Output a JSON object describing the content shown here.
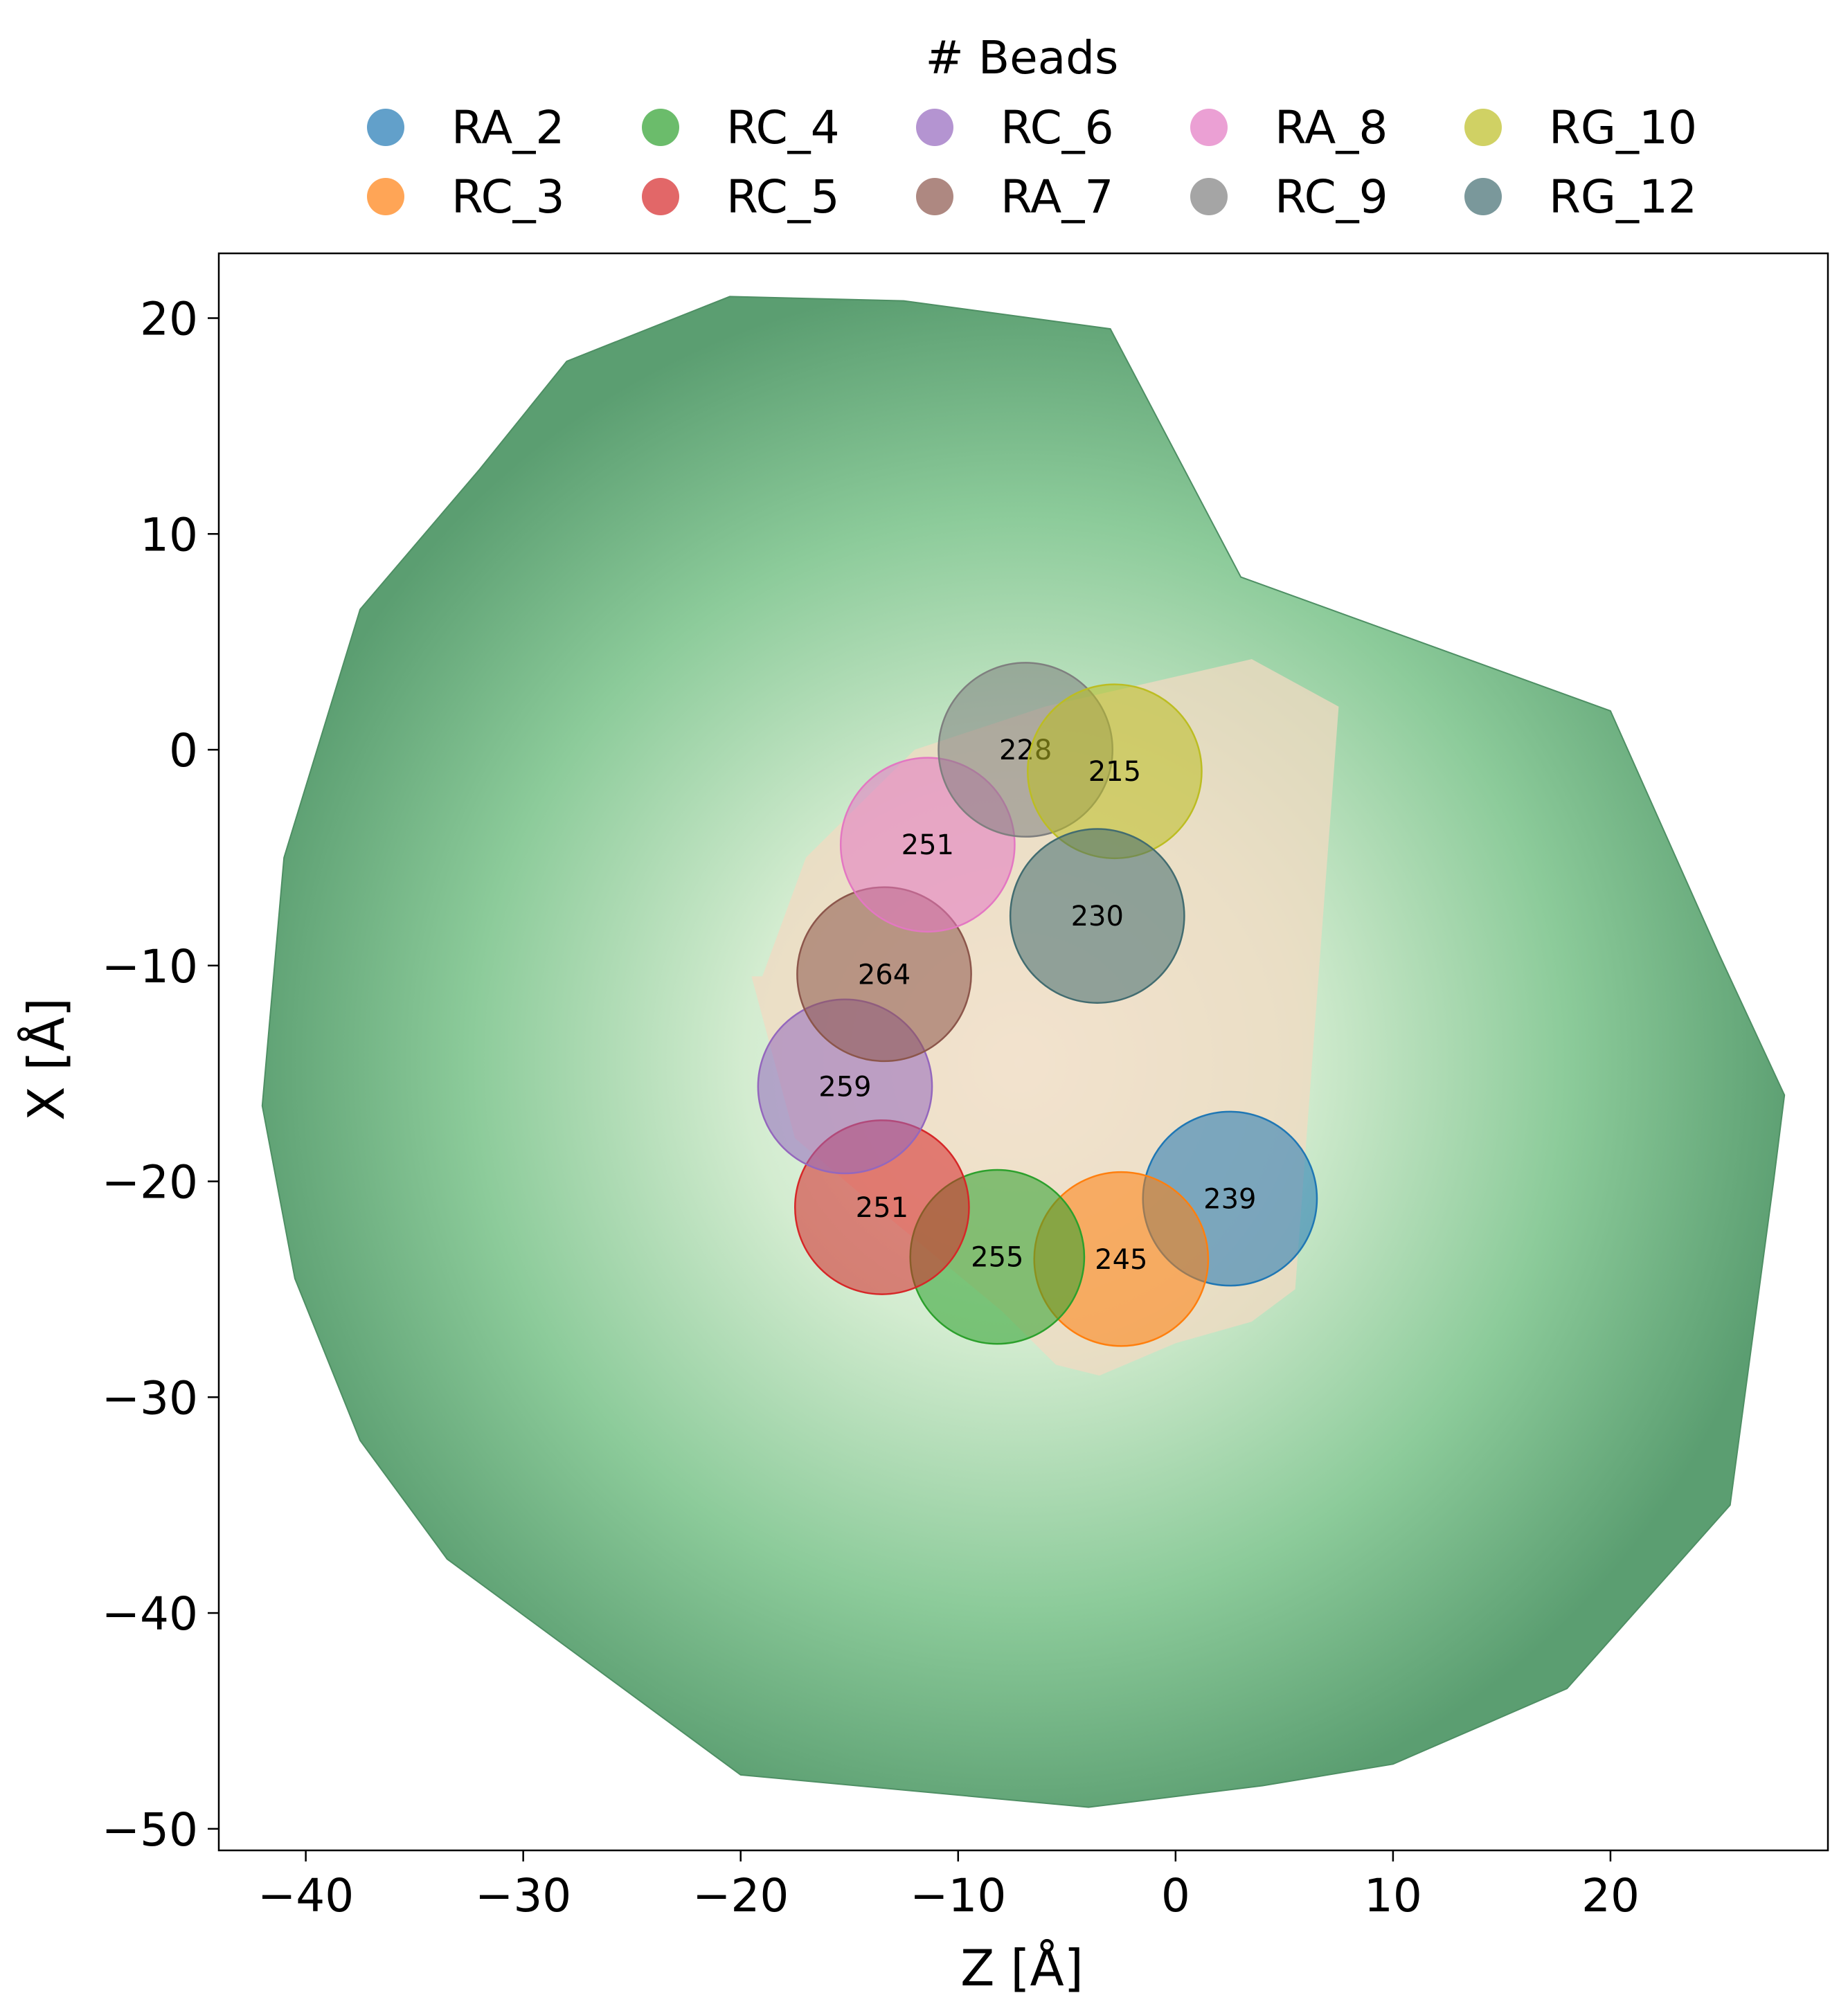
{
  "chart_data": {
    "type": "scatter",
    "xlabel": "Z [Å]",
    "ylabel": "X [Å]",
    "xlim": [
      -44,
      30
    ],
    "ylim": [
      -51,
      23
    ],
    "xticks": [
      -40,
      -30,
      -20,
      -10,
      0,
      10,
      20
    ],
    "yticks": [
      20,
      10,
      0,
      -10,
      -20,
      -30,
      -40,
      -50
    ],
    "xtick_labels": [
      "−40",
      "−30",
      "−20",
      "−10",
      "0",
      "10",
      "20"
    ],
    "ytick_labels": [
      "20",
      "10",
      "0",
      "−10",
      "−20",
      "−30",
      "−40",
      "−50"
    ],
    "grid": false,
    "legend": {
      "title": "# Beads",
      "placement": "top-center",
      "columns": 5
    },
    "background_density": {
      "center": [
        -7.2,
        -14.5
      ],
      "outer_color": "#5b9e71",
      "inner_color": "#f4fbf1",
      "outline_z": [
        -42,
        -41,
        -37.5,
        -32,
        -28,
        -20.5,
        -12.5,
        -3,
        3,
        20,
        25,
        28,
        27.5,
        25.5,
        18,
        10,
        4,
        -4,
        -20,
        -33.5,
        -37.5,
        -40.5
      ],
      "outline_x": [
        -16.5,
        -5,
        6.5,
        13,
        18,
        21,
        20.8,
        19.5,
        8,
        1.8,
        -9.5,
        -16,
        -20,
        -35,
        -43.5,
        -47,
        -48,
        -49,
        -47.5,
        -37.5,
        -32,
        -24.5
      ]
    },
    "inner_density": {
      "color": "#f2d9c1",
      "outline_z": [
        -19,
        -17,
        -12,
        -6,
        0.5,
        3.5,
        7.5,
        5.5,
        3.5,
        0,
        -3.5,
        -5.5,
        -8,
        -14,
        -17.5,
        -19.5
      ],
      "outline_x": [
        -10.5,
        -5,
        0,
        2,
        3.5,
        4.2,
        2,
        -25,
        -26.5,
        -27.5,
        -29,
        -28.5,
        -26,
        -21,
        -18,
        -10.5
      ]
    },
    "beads": [
      {
        "name": "RA_2",
        "z": 2.5,
        "x": -20.8,
        "count": "239",
        "color": "#1f77b4"
      },
      {
        "name": "RC_3",
        "z": -2.5,
        "x": -23.6,
        "count": "245",
        "color": "#ff7f0e"
      },
      {
        "name": "RC_4",
        "z": -8.2,
        "x": -23.5,
        "count": "255",
        "color": "#2ca02c"
      },
      {
        "name": "RC_5",
        "z": -13.5,
        "x": -21.2,
        "count": "251",
        "color": "#d62728"
      },
      {
        "name": "RC_6",
        "z": -15.2,
        "x": -15.6,
        "count": "259",
        "color": "#9467bd"
      },
      {
        "name": "RA_7",
        "z": -13.4,
        "x": -10.4,
        "count": "264",
        "color": "#8c564b"
      },
      {
        "name": "RA_8",
        "z": -11.4,
        "x": -4.4,
        "count": "251",
        "color": "#e377c2"
      },
      {
        "name": "RC_9",
        "z": -6.9,
        "x": 0.0,
        "count": "228",
        "color": "#7f7f7f"
      },
      {
        "name": "RG_10",
        "z": -2.8,
        "x": -1.0,
        "count": "215",
        "color": "#bcbd22"
      },
      {
        "name": "RG_12",
        "z": -3.6,
        "x": -7.7,
        "count": "230",
        "color": "#426c70"
      }
    ]
  }
}
